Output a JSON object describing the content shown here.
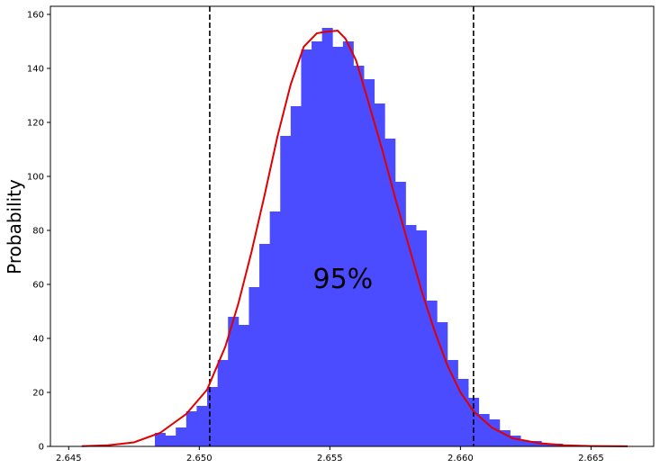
{
  "chart_data": {
    "type": "bar",
    "title": "",
    "xlabel": "",
    "ylabel": "Probability",
    "xlim": [
      2.6443,
      2.6674
    ],
    "ylim": [
      0,
      163
    ],
    "xticks": [
      2.645,
      2.65,
      2.655,
      2.66,
      2.665
    ],
    "xtick_labels": [
      "2.645",
      "2.650",
      "2.655",
      "2.660",
      "2.665"
    ],
    "yticks": [
      0,
      20,
      40,
      60,
      80,
      100,
      120,
      140,
      160
    ],
    "ytick_labels": [
      "0",
      "20",
      "40",
      "60",
      "80",
      "100",
      "120",
      "140",
      "160"
    ],
    "grid": false,
    "histogram": {
      "color": "#4b4bff",
      "bin_edges": [
        2.6483,
        2.6487,
        2.6491,
        2.6495,
        2.6499,
        2.6503,
        2.6507,
        2.6511,
        2.6515,
        2.6519,
        2.6523,
        2.6527,
        2.6531,
        2.6535,
        2.6539,
        2.6543,
        2.6547,
        2.6551,
        2.6555,
        2.6559,
        2.6563,
        2.6567,
        2.6571,
        2.6575,
        2.6579,
        2.6583,
        2.6587,
        2.6591,
        2.6595,
        2.6599,
        2.6603,
        2.6607,
        2.6611,
        2.6615,
        2.6619,
        2.6623,
        2.6627,
        2.6631,
        2.6635,
        2.6639
      ],
      "counts": [
        5,
        4,
        7,
        13,
        15,
        22,
        32,
        48,
        45,
        59,
        75,
        87,
        115,
        126,
        147,
        150,
        155,
        148,
        150,
        141,
        136,
        127,
        114,
        98,
        82,
        80,
        54,
        46,
        32,
        25,
        18,
        12,
        10,
        6,
        4,
        2,
        2,
        1,
        1
      ]
    },
    "curve": {
      "color": "#e00000",
      "x": [
        2.6455,
        2.6465,
        2.6475,
        2.6485,
        2.6495,
        2.6503,
        2.651,
        2.6515,
        2.652,
        2.6525,
        2.653,
        2.6535,
        2.654,
        2.6545,
        2.6548,
        2.6551,
        2.6553,
        2.6556,
        2.656,
        2.6564,
        2.657,
        2.6575,
        2.658,
        2.6585,
        2.659,
        2.6595,
        2.66,
        2.6605,
        2.6612,
        2.662,
        2.663,
        2.664,
        2.665,
        2.6664
      ],
      "y": [
        0.1,
        0.4,
        1.5,
        5,
        12,
        21,
        37,
        53,
        72,
        93,
        115,
        134,
        148,
        153,
        153.5,
        153.8,
        154,
        151,
        143,
        130,
        110,
        92,
        75,
        58,
        43,
        30,
        20,
        13,
        7,
        3,
        1.2,
        0.4,
        0.15,
        0.05
      ]
    },
    "vlines": [
      {
        "x": 2.6504,
        "style": "dashed",
        "color": "#000000"
      },
      {
        "x": 2.6605,
        "style": "dashed",
        "color": "#000000"
      }
    ],
    "annotation": {
      "text": "95%",
      "x": 2.6555,
      "y": 62
    }
  }
}
